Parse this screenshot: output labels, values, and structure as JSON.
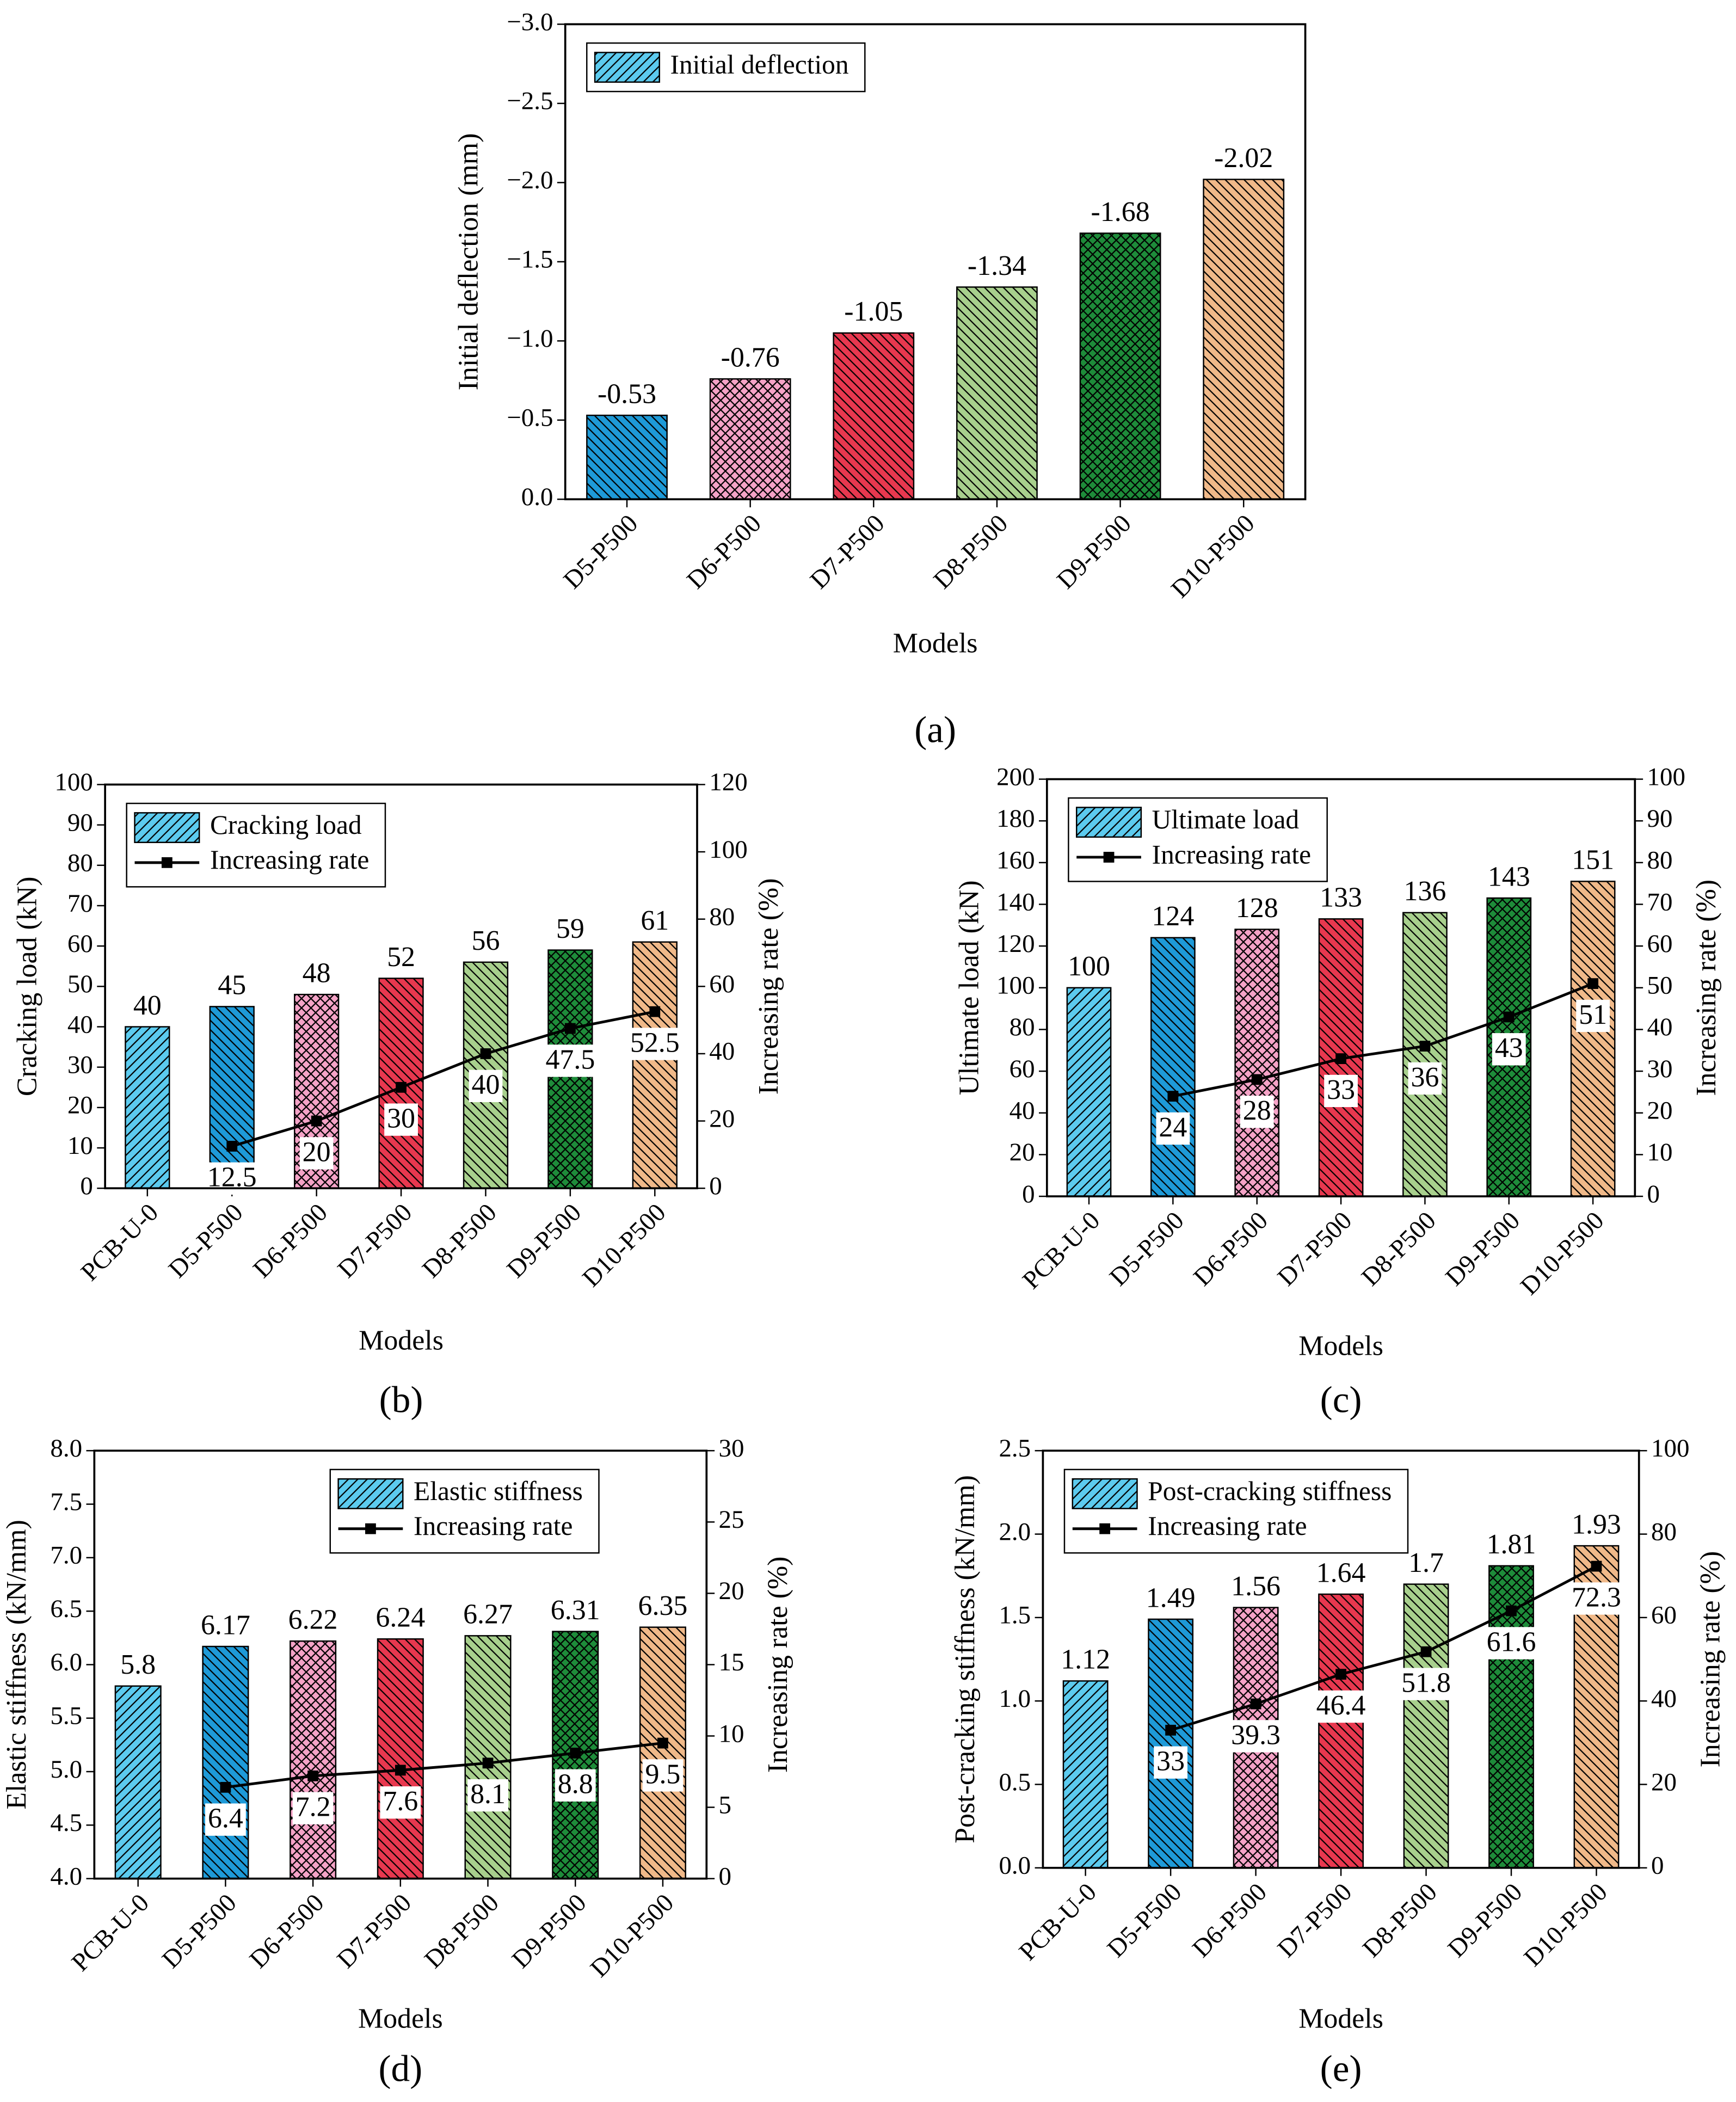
{
  "chart_data": [
    {
      "type": "bar",
      "label": "(a)",
      "xlabel": "Models",
      "ylabel": "Initial deflection (mm)",
      "legend": "upper left",
      "categories": [
        "D5-P500",
        "D6-P500",
        "D7-P500",
        "D8-P500",
        "D9-P500",
        "D10-P500"
      ],
      "ylim": [
        0,
        -3.0
      ],
      "yticks": [
        {
          "value": 0,
          "label": "0.0"
        },
        {
          "value": -0.5,
          "label": "−0.5"
        },
        {
          "value": -1.0,
          "label": "−1.0"
        },
        {
          "value": -1.5,
          "label": "−1.5"
        },
        {
          "value": -2.0,
          "label": "−2.0"
        },
        {
          "value": -2.5,
          "label": "−2.5"
        },
        {
          "value": -3.0,
          "label": "−3.0"
        }
      ],
      "series": [
        {
          "name": "Initial deflection",
          "type": "bar",
          "legend_color": "#5ccbef",
          "legend_pattern": "fwd",
          "values": [
            -0.53,
            -0.76,
            -1.05,
            -1.34,
            -1.68,
            -2.02
          ],
          "colors": [
            "#1e9ad8",
            "#f5a3c7",
            "#e8384f",
            "#a8d08d",
            "#1e8c3a",
            "#f0b989"
          ],
          "patterns": [
            "back",
            "cross",
            "back",
            "back",
            "cross",
            "back"
          ]
        }
      ]
    },
    {
      "type": "combo",
      "label": "(b)",
      "xlabel": "Models",
      "ylabel": "Cracking load (kN)",
      "y2label": "Increasing rate (%)",
      "legend": "upper left",
      "categories": [
        "PCB-U-0",
        "D5-P500",
        "D6-P500",
        "D7-P500",
        "D8-P500",
        "D9-P500",
        "D10-P500"
      ],
      "ylim": [
        0,
        100
      ],
      "yticks": [
        0,
        10,
        20,
        30,
        40,
        50,
        60,
        70,
        80,
        90,
        100
      ],
      "y2lim": [
        0,
        120
      ],
      "y2ticks": [
        0,
        20,
        40,
        60,
        80,
        100,
        120
      ],
      "series": [
        {
          "name": "Cracking load",
          "type": "bar",
          "legend_color": "#5ccbef",
          "legend_pattern": "fwd",
          "values": [
            40,
            45,
            48,
            52,
            56,
            59,
            61
          ],
          "colors": [
            "#5ccbef",
            "#1e9ad8",
            "#f5a3c7",
            "#e8384f",
            "#a8d08d",
            "#1e8c3a",
            "#f0b989"
          ],
          "patterns": [
            "fwd",
            "back",
            "cross",
            "back",
            "back",
            "cross",
            "back"
          ]
        },
        {
          "name": "Increasing rate",
          "type": "line",
          "axis": "y2",
          "color": "#000000",
          "values": [
            null,
            12.5,
            20,
            30,
            40,
            47.5,
            52.5
          ]
        }
      ]
    },
    {
      "type": "combo",
      "label": "(c)",
      "xlabel": "Models",
      "ylabel": "Ultimate load (kN)",
      "y2label": "Increasing rate (%)",
      "legend": "upper left",
      "categories": [
        "PCB-U-0",
        "D5-P500",
        "D6-P500",
        "D7-P500",
        "D8-P500",
        "D9-P500",
        "D10-P500"
      ],
      "ylim": [
        0,
        200
      ],
      "yticks": [
        0,
        20,
        40,
        60,
        80,
        100,
        120,
        140,
        160,
        180,
        200
      ],
      "y2lim": [
        0,
        100
      ],
      "y2ticks": [
        0,
        10,
        20,
        30,
        40,
        50,
        60,
        70,
        80,
        90,
        100
      ],
      "series": [
        {
          "name": "Ultimate load",
          "type": "bar",
          "legend_color": "#5ccbef",
          "legend_pattern": "fwd",
          "values": [
            100,
            124,
            128,
            133,
            136,
            143,
            151
          ],
          "colors": [
            "#5ccbef",
            "#1e9ad8",
            "#f5a3c7",
            "#e8384f",
            "#a8d08d",
            "#1e8c3a",
            "#f0b989"
          ],
          "patterns": [
            "fwd",
            "back",
            "cross",
            "back",
            "back",
            "cross",
            "back"
          ]
        },
        {
          "name": "Increasing rate",
          "type": "line",
          "axis": "y2",
          "color": "#000000",
          "values": [
            null,
            24,
            28,
            33,
            36,
            43,
            51
          ]
        }
      ]
    },
    {
      "type": "combo",
      "label": "(d)",
      "xlabel": "Models",
      "ylabel": "Elastic stiffness (kN/mm)",
      "y2label": "Increasing rate (%)",
      "legend": "upper right",
      "categories": [
        "PCB-U-0",
        "D5-P500",
        "D6-P500",
        "D7-P500",
        "D8-P500",
        "D9-P500",
        "D10-P500"
      ],
      "ylim": [
        4.0,
        8.0
      ],
      "yticks": [
        {
          "value": 4.0,
          "label": "4.0"
        },
        4.5,
        {
          "value": 5.0,
          "label": "5.0"
        },
        5.5,
        {
          "value": 6.0,
          "label": "6.0"
        },
        6.5,
        {
          "value": 7.0,
          "label": "7.0"
        },
        7.5,
        {
          "value": 8.0,
          "label": "8.0"
        }
      ],
      "y2lim": [
        0,
        30
      ],
      "y2ticks": [
        0,
        5,
        10,
        15,
        20,
        25,
        30
      ],
      "series": [
        {
          "name": "Elastic stiffness",
          "type": "bar",
          "legend_color": "#5ccbef",
          "legend_pattern": "fwd",
          "values": [
            5.8,
            6.17,
            6.22,
            6.24,
            6.27,
            6.31,
            6.35
          ],
          "colors": [
            "#5ccbef",
            "#1e9ad8",
            "#f5a3c7",
            "#e8384f",
            "#a8d08d",
            "#1e8c3a",
            "#f0b989"
          ],
          "patterns": [
            "fwd",
            "back",
            "cross",
            "back",
            "back",
            "cross",
            "back"
          ]
        },
        {
          "name": "Increasing rate",
          "type": "line",
          "axis": "y2",
          "color": "#000000",
          "values": [
            null,
            6.4,
            7.2,
            7.6,
            8.1,
            8.8,
            9.5
          ]
        }
      ]
    },
    {
      "type": "combo",
      "label": "(e)",
      "xlabel": "Models",
      "ylabel": "Post-cracking stiffness (kN/mm)",
      "y2label": "Increasing rate (%)",
      "legend": "upper left",
      "categories": [
        "PCB-U-0",
        "D5-P500",
        "D6-P500",
        "D7-P500",
        "D8-P500",
        "D9-P500",
        "D10-P500"
      ],
      "ylim": [
        0,
        2.5
      ],
      "yticks": [
        {
          "value": 0,
          "label": "0.0"
        },
        0.5,
        {
          "value": 1.0,
          "label": "1.0"
        },
        1.5,
        {
          "value": 2.0,
          "label": "2.0"
        },
        2.5
      ],
      "y2lim": [
        0,
        100
      ],
      "y2ticks": [
        0,
        20,
        40,
        60,
        80,
        100
      ],
      "series": [
        {
          "name": "Post-cracking stiffness",
          "type": "bar",
          "legend_color": "#5ccbef",
          "legend_pattern": "fwd",
          "values": [
            1.12,
            1.49,
            1.56,
            1.64,
            1.7,
            1.81,
            1.93
          ],
          "colors": [
            "#5ccbef",
            "#1e9ad8",
            "#f5a3c7",
            "#e8384f",
            "#a8d08d",
            "#1e8c3a",
            "#f0b989"
          ],
          "patterns": [
            "fwd",
            "back",
            "cross",
            "back",
            "back",
            "cross",
            "back"
          ]
        },
        {
          "name": "Increasing rate",
          "type": "line",
          "axis": "y2",
          "color": "#000000",
          "values": [
            null,
            33,
            39.3,
            46.4,
            51.8,
            61.6,
            72.3
          ]
        }
      ]
    }
  ]
}
